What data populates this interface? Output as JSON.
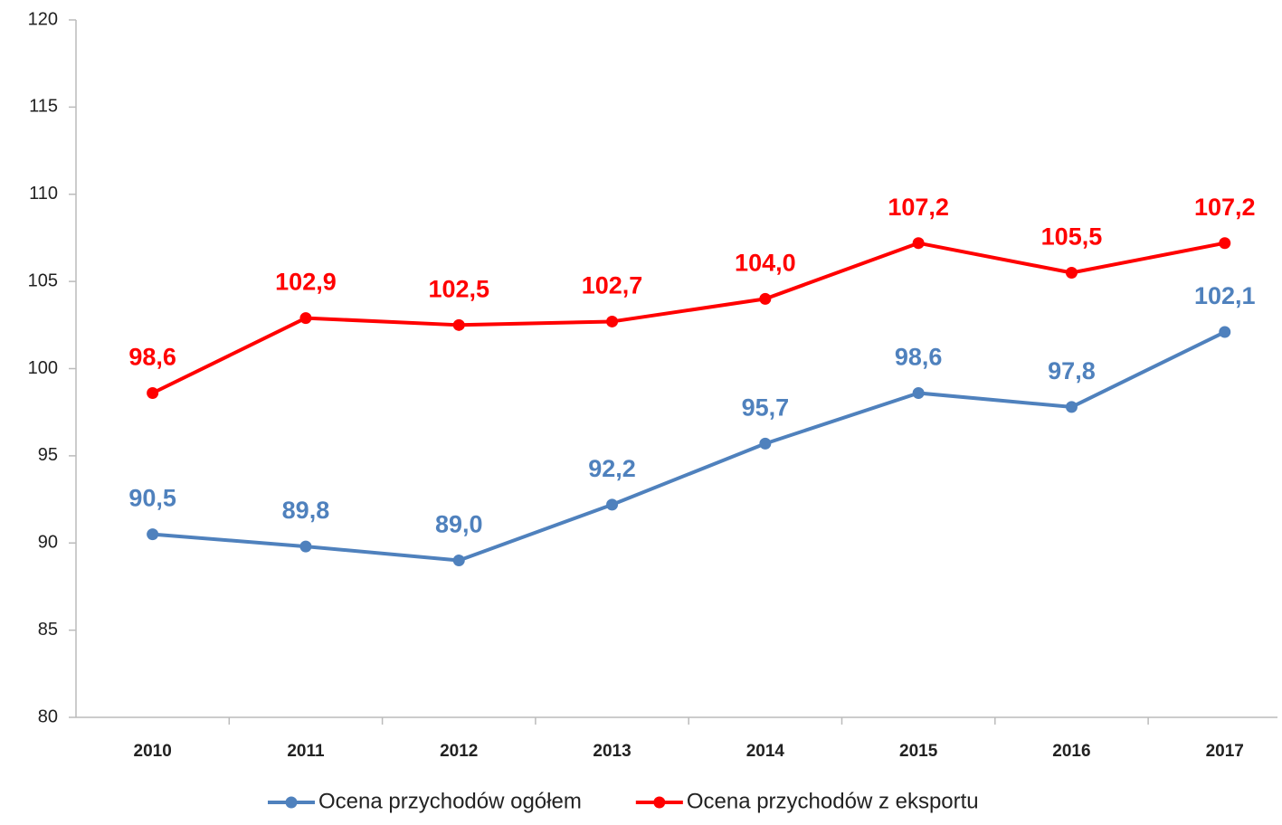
{
  "chart_data": {
    "type": "line",
    "categories": [
      "2010",
      "2011",
      "2012",
      "2013",
      "2014",
      "2015",
      "2016",
      "2017"
    ],
    "series": [
      {
        "name": "Ocena przychodów ogółem",
        "color": "#4f81bd",
        "values": [
          90.5,
          89.8,
          89.0,
          92.2,
          95.7,
          98.6,
          97.8,
          102.1
        ],
        "value_labels": [
          "90,5",
          "89,8",
          "89,0",
          "92,2",
          "95,7",
          "98,6",
          "97,8",
          "102,1"
        ]
      },
      {
        "name": "Ocena przychodów z eksportu",
        "color": "#ff0000",
        "values": [
          98.6,
          102.9,
          102.5,
          102.7,
          104.0,
          107.2,
          105.5,
          107.2
        ],
        "value_labels": [
          "98,6",
          "102,9",
          "102,5",
          "102,7",
          "104,0",
          "107,2",
          "105,5",
          "107,2"
        ]
      }
    ],
    "ylim": [
      80,
      120
    ],
    "yticks": [
      80,
      85,
      90,
      95,
      100,
      105,
      110,
      115,
      120
    ],
    "grid": false,
    "legend": "bottom"
  }
}
